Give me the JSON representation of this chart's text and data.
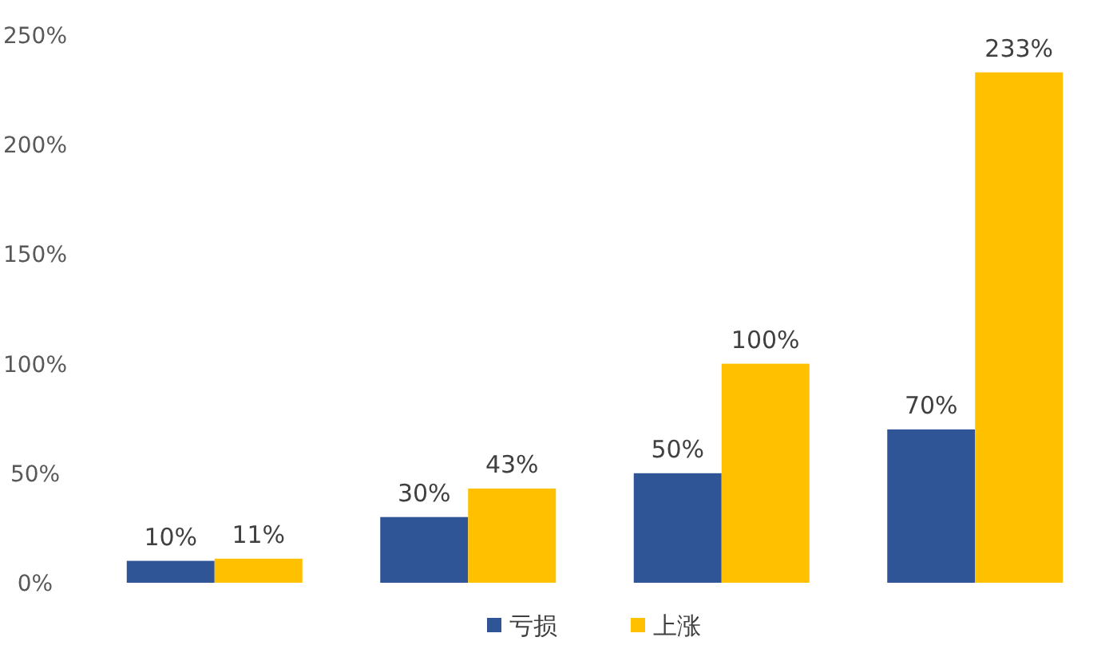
{
  "chart_data": {
    "type": "bar",
    "categories": [
      null,
      null,
      null,
      null
    ],
    "series": [
      {
        "name": "亏损",
        "color": "#2f5597",
        "values": [
          10,
          30,
          50,
          70
        ],
        "value_labels": [
          "10%",
          "30%",
          "50%",
          "70%"
        ]
      },
      {
        "name": "上涨",
        "color": "#ffc000",
        "values": [
          11,
          43,
          100,
          233
        ],
        "value_labels": [
          "11%",
          "43%",
          "100%",
          "233%"
        ]
      }
    ],
    "ylim": [
      0,
      250
    ],
    "yticks": [
      {
        "value": 0,
        "label": "0%"
      },
      {
        "value": 50,
        "label": "50%"
      },
      {
        "value": 100,
        "label": "100%"
      },
      {
        "value": 150,
        "label": "150%"
      },
      {
        "value": 200,
        "label": "200%"
      },
      {
        "value": 250,
        "label": "250%"
      }
    ],
    "grid": false,
    "legend": "bottom"
  }
}
